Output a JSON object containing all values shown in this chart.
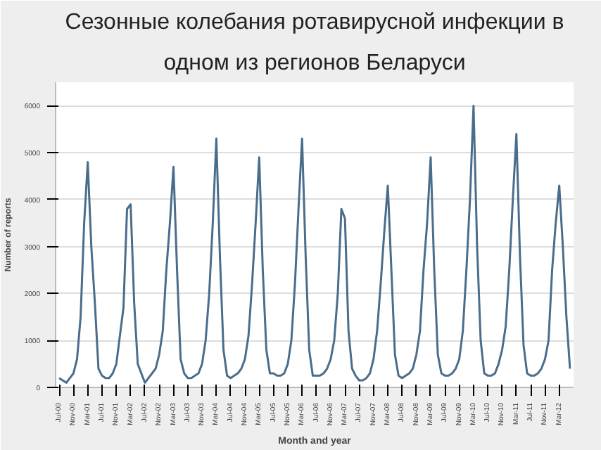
{
  "chart_data": {
    "type": "line",
    "title": "Сезонные колебания ротавирусной инфекции в",
    "subtitle": "одном из регионов Беларуси",
    "xlabel": "Month and year",
    "ylabel": "Number of reports",
    "categories": [
      "Jul-00",
      null,
      null,
      null,
      "Nov-00",
      null,
      null,
      null,
      "Mar-01",
      null,
      null,
      null,
      "Jul-01",
      null,
      null,
      null,
      "Nov-01",
      null,
      null,
      null,
      "Mar-02",
      null,
      null,
      null,
      "Jul-02",
      null,
      null,
      null,
      "Nov-02",
      null,
      null,
      null,
      "Mar-03",
      null,
      null,
      null,
      "Jul-03",
      null,
      null,
      null,
      "Nov-03",
      null,
      null,
      null,
      "Mar-04",
      null,
      null,
      null,
      "Jul-04",
      null,
      null,
      null,
      "Nov-04",
      null,
      null,
      null,
      "Mar-05",
      null,
      null,
      null,
      "Jul-05",
      null,
      null,
      null,
      "Nov-05",
      null,
      null,
      null,
      "Mar-06",
      null,
      null,
      null,
      "Jul-06",
      null,
      null,
      null,
      "Nov-06",
      null,
      null,
      null,
      "Mar-07",
      null,
      null,
      null,
      "Jul-07",
      null,
      null,
      null,
      "Nov-07",
      null,
      null,
      null,
      "Mar-08",
      null,
      null,
      null,
      "Jul-08",
      null,
      null,
      null,
      "Nov-08",
      null,
      null,
      null,
      "Mar-09",
      null,
      null,
      null,
      "Jul-09",
      null,
      null,
      null,
      "Nov-09",
      null,
      null,
      null,
      "Mar-10",
      null,
      null,
      null,
      "Jul-10",
      null,
      null,
      null,
      "Nov-10",
      null,
      null,
      null,
      "Mar-11",
      null,
      null,
      null,
      "Jul-11",
      null,
      null,
      null,
      "Nov-11",
      null,
      null,
      null,
      "Mar-12",
      null,
      null,
      null
    ],
    "series": [
      {
        "color": "#4a6d8c",
        "values": [
          200,
          150,
          100,
          200,
          300,
          600,
          1500,
          3500,
          4800,
          3000,
          1800,
          400,
          250,
          200,
          200,
          300,
          500,
          1100,
          1700,
          3800,
          3900,
          1800,
          500,
          300,
          100,
          200,
          300,
          400,
          700,
          1200,
          2500,
          3500,
          4700,
          2500,
          600,
          300,
          200,
          200,
          250,
          300,
          500,
          1000,
          2000,
          3500,
          5300,
          2800,
          800,
          250,
          200,
          250,
          300,
          400,
          600,
          1100,
          2200,
          3500,
          4900,
          2500,
          800,
          300,
          300,
          250,
          250,
          300,
          500,
          1000,
          2200,
          3800,
          5300,
          2800,
          800,
          250,
          250,
          250,
          300,
          400,
          600,
          1000,
          2000,
          3800,
          3600,
          1200,
          400,
          250,
          150,
          150,
          200,
          300,
          600,
          1200,
          2200,
          3300,
          4300,
          2500,
          700,
          250,
          200,
          250,
          300,
          400,
          700,
          1200,
          2500,
          3500,
          4900,
          2500,
          700,
          300,
          250,
          250,
          300,
          400,
          600,
          1200,
          2500,
          4000,
          6000,
          3000,
          1000,
          300,
          250,
          250,
          300,
          500,
          800,
          1300,
          2500,
          4000,
          5400,
          2800,
          900,
          300,
          250,
          250,
          300,
          400,
          600,
          1000,
          2500,
          3500,
          4300,
          3000,
          1500,
          400
        ]
      }
    ],
    "ylim": [
      0,
      6500
    ],
    "yticks": [
      0,
      1000,
      2000,
      3000,
      4000,
      5000,
      6000
    ],
    "grid": "y"
  }
}
